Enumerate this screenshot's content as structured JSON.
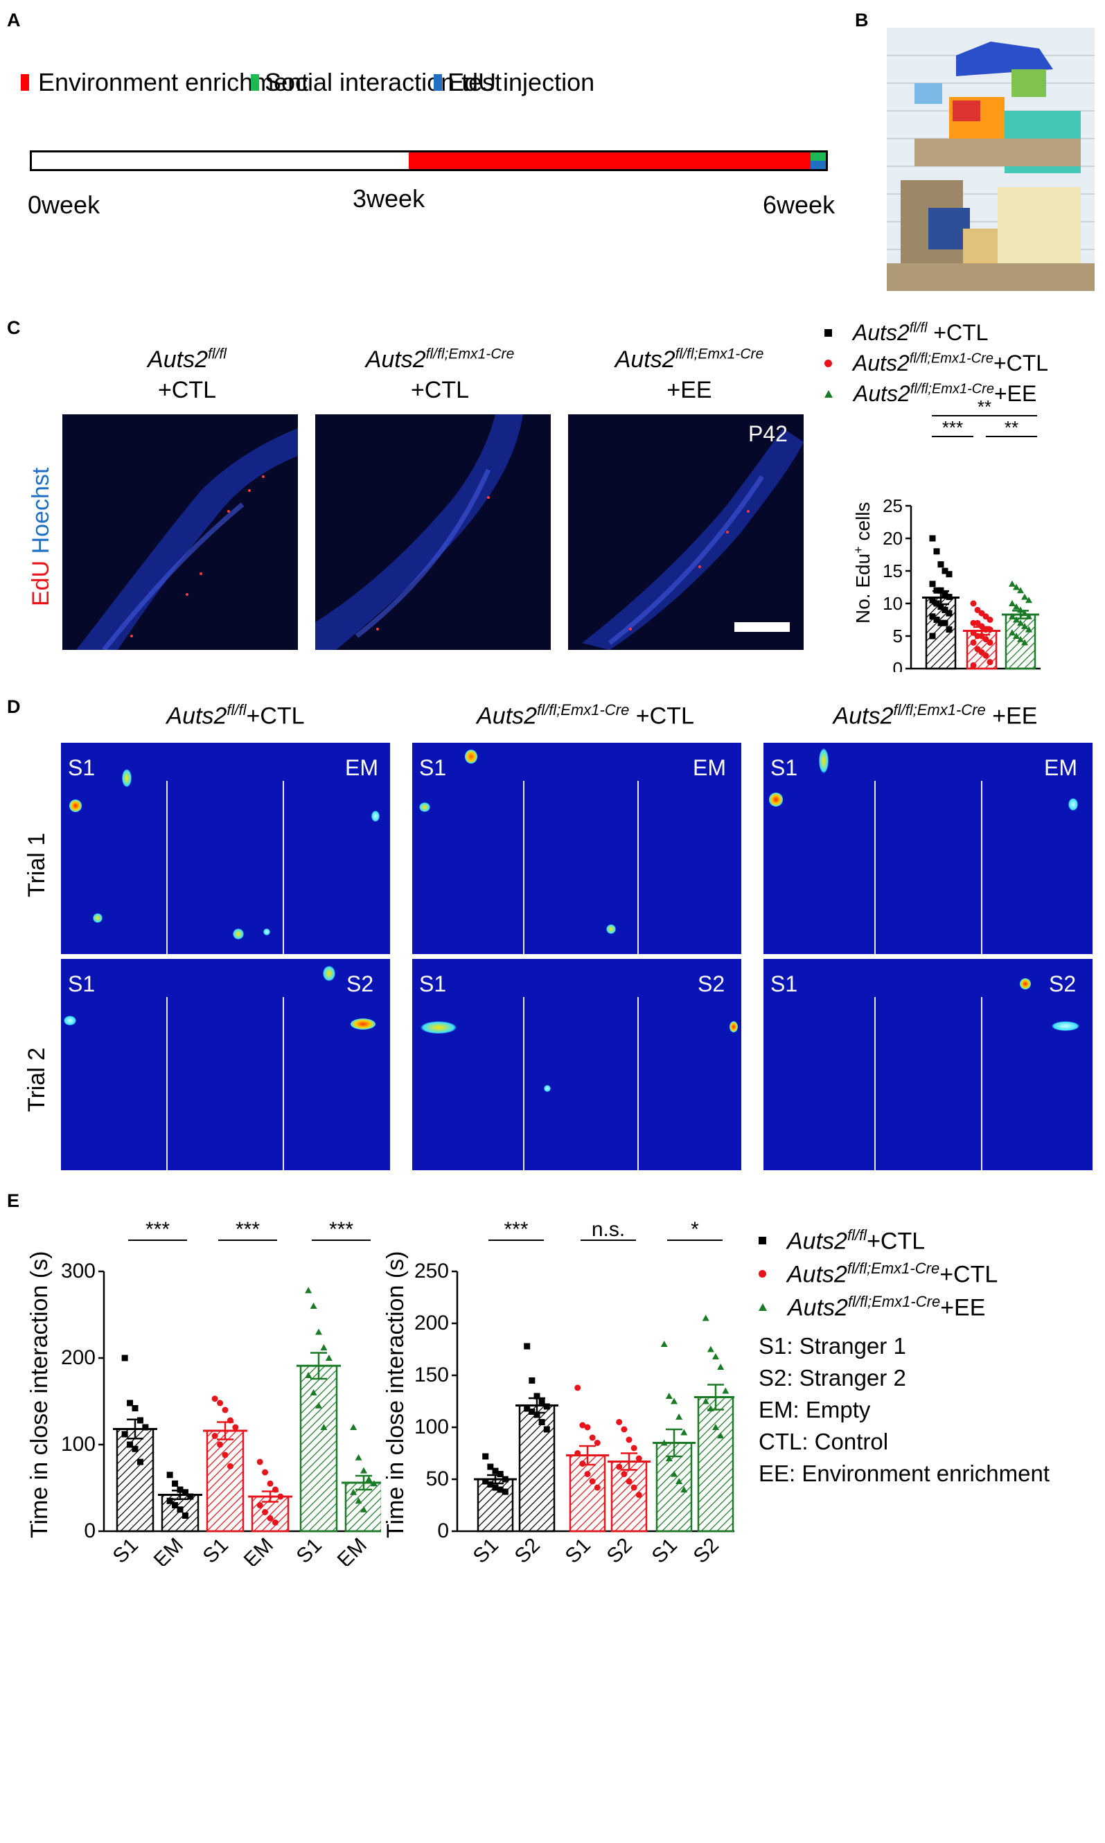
{
  "panels": {
    "A": "A",
    "B": "B",
    "C": "C",
    "D": "D",
    "E": "E"
  },
  "timeline": {
    "legend": [
      {
        "label": "Environment enrichment",
        "color": "#ff0000"
      },
      {
        "label": "Social interaction test",
        "color": "#1db954"
      },
      {
        "label": "EdU injection",
        "color": "#1f6fc2"
      }
    ],
    "ticks": {
      "start": "0week",
      "mid": "3week",
      "end": "6week"
    }
  },
  "panelC": {
    "groups": [
      {
        "name": "Auts2",
        "sup": "fl/fl",
        "cond": "+CTL"
      },
      {
        "name": "Auts2",
        "sup": "fl/fl;Emx1-Cre",
        "cond": "+CTL"
      },
      {
        "name": "Auts2",
        "sup": "fl/fl;Emx1-Cre",
        "cond": "+EE"
      }
    ],
    "stain_edu": "EdU",
    "stain_hoechst": "Hoechst",
    "age": "P42",
    "legend": [
      {
        "name": "Auts2",
        "sup": "fl/fl",
        "suffix": " +CTL",
        "color": "#000000",
        "marker": "square"
      },
      {
        "name": "Auts2",
        "sup": "fl/fl;Emx1-Cre",
        "suffix": "+CTL",
        "color": "#e8141b",
        "marker": "circle"
      },
      {
        "name": "Auts2",
        "sup": "fl/fl;Emx1-Cre",
        "suffix": "+EE",
        "color": "#1b7a26",
        "marker": "triangle"
      }
    ],
    "sig": {
      "top": "**",
      "left": "***",
      "right": "**"
    },
    "ylabel_main": "No. Edu",
    "ylabel_sup": "+",
    "ylabel_end": " cells"
  },
  "panelD": {
    "groups": [
      {
        "name": "Auts2",
        "sup": "fl/fl",
        "cond": "+CTL"
      },
      {
        "name": "Auts2",
        "sup": "fl/fl;Emx1-Cre",
        "cond": " +CTL"
      },
      {
        "name": "Auts2",
        "sup": "fl/fl;Emx1-Cre",
        "cond": " +EE"
      }
    ],
    "trials": [
      "Trial 1",
      "Trial 2"
    ],
    "trial1_labels": {
      "left": "S1",
      "right": "EM"
    },
    "trial2_labels": {
      "left": "S1",
      "right": "S2"
    }
  },
  "panelE": {
    "ylabel": "Time in close interaction (s)",
    "left_sig": [
      "***",
      "***",
      "***"
    ],
    "right_sig": [
      "***",
      "n.s.",
      "*"
    ],
    "left_xlabels": [
      "S1",
      "EM",
      "S1",
      "EM",
      "S1",
      "EM"
    ],
    "right_xlabels": [
      "S1",
      "S2",
      "S1",
      "S2",
      "S1",
      "S2"
    ],
    "legend": [
      {
        "name": "Auts2",
        "sup": "fl/fl",
        "suffix": "+CTL",
        "color": "#000000",
        "marker": "square"
      },
      {
        "name": "Auts2",
        "sup": "fl/fl;Emx1-Cre",
        "suffix": "+CTL",
        "color": "#e8141b",
        "marker": "circle"
      },
      {
        "name": "Auts2",
        "sup": "fl/fl;Emx1-Cre",
        "suffix": "+EE",
        "color": "#1b7a26",
        "marker": "triangle"
      }
    ],
    "abbreviations": [
      "S1: Stranger 1",
      "S2: Stranger 2",
      "EM: Empty",
      "CTL: Control",
      "EE: Environment enrichment"
    ]
  },
  "chart_data": [
    {
      "type": "bar",
      "title": "",
      "ylabel": "No. Edu+ cells",
      "categories": [
        "Auts2fl/fl +CTL",
        "Auts2fl/fl;Emx1-Cre+CTL",
        "Auts2fl/fl;Emx1-Cre+EE"
      ],
      "values": [
        10.9,
        5.8,
        8.3
      ],
      "errors": [
        1.0,
        0.6,
        0.6
      ],
      "ylim": [
        0,
        25
      ],
      "yticks": [
        0,
        5,
        10,
        15,
        20,
        25
      ],
      "colors": [
        "#000000",
        "#e8141b",
        "#1b7a26"
      ],
      "points": [
        [
          20,
          18,
          16,
          15,
          14.5,
          13,
          12,
          12,
          11.5,
          11,
          10.5,
          10,
          9.5,
          9,
          8.5,
          8,
          7.5,
          7,
          7,
          6,
          5
        ],
        [
          10,
          9,
          8.5,
          8,
          7.5,
          7,
          7,
          6.5,
          6,
          6,
          5.5,
          5,
          5,
          4.5,
          4,
          4,
          3,
          2.5,
          2,
          1,
          0.5
        ],
        [
          13,
          12.5,
          12,
          11,
          10.5,
          10,
          9.5,
          9,
          8.5,
          8,
          8,
          7.5,
          7,
          6.5,
          6,
          5.5,
          5,
          4.5,
          4
        ]
      ]
    },
    {
      "type": "bar",
      "title": "",
      "ylabel": "Time in close interaction (s)",
      "categories": [
        "S1",
        "EM",
        "S1",
        "EM",
        "S1",
        "EM"
      ],
      "values": [
        118,
        42,
        116,
        40,
        191,
        56
      ],
      "errors": [
        11,
        5,
        10,
        6,
        15,
        8
      ],
      "ylim": [
        0,
        300
      ],
      "yticks": [
        0,
        100,
        200,
        300
      ],
      "colors": [
        "#000000",
        "#000000",
        "#e8141b",
        "#e8141b",
        "#1b7a26",
        "#1b7a26"
      ],
      "points": [
        [
          200,
          148,
          142,
          128,
          120,
          112,
          100,
          95,
          80
        ],
        [
          65,
          55,
          48,
          45,
          40,
          35,
          30,
          25,
          18
        ],
        [
          153,
          148,
          140,
          128,
          120,
          110,
          100,
          88,
          75
        ],
        [
          80,
          68,
          55,
          48,
          40,
          30,
          22,
          15,
          10
        ],
        [
          278,
          260,
          230,
          212,
          200,
          180,
          160,
          145,
          120
        ],
        [
          120,
          85,
          70,
          60,
          55,
          45,
          35,
          25
        ]
      ]
    },
    {
      "type": "bar",
      "title": "",
      "ylabel": "Time in close interaction (s)",
      "categories": [
        "S1",
        "S2",
        "S1",
        "S2",
        "S1",
        "S2"
      ],
      "values": [
        50,
        121,
        73,
        67,
        85,
        129
      ],
      "errors": [
        4,
        7,
        9,
        8,
        13,
        12
      ],
      "ylim": [
        0,
        250
      ],
      "yticks": [
        0,
        50,
        100,
        150,
        200,
        250
      ],
      "colors": [
        "#000000",
        "#000000",
        "#e8141b",
        "#e8141b",
        "#1b7a26",
        "#1b7a26"
      ],
      "points": [
        [
          72,
          62,
          58,
          55,
          50,
          48,
          45,
          42,
          40,
          38
        ],
        [
          178,
          145,
          130,
          125,
          120,
          118,
          115,
          112,
          105,
          98
        ],
        [
          138,
          102,
          100,
          90,
          85,
          75,
          65,
          55,
          48,
          42
        ],
        [
          105,
          98,
          88,
          80,
          70,
          62,
          55,
          48,
          42,
          35
        ],
        [
          180,
          130,
          125,
          110,
          95,
          85,
          70,
          55,
          48,
          40
        ],
        [
          205,
          175,
          168,
          158,
          135,
          125,
          118,
          100,
          92
        ]
      ]
    }
  ]
}
